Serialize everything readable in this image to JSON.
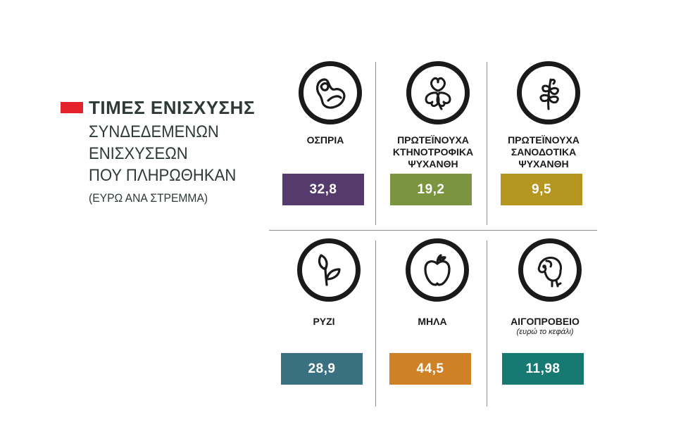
{
  "title": "ΤΙΜΕΣ ΕΝΙΣΧΥΣΗΣ",
  "subtitle_lines": [
    "ΣΥΝΔΕΔΕΜΕΝΩΝ",
    "ΕΝΙΣΧΥΣΕΩΝ",
    "ΠΟΥ ΠΛΗΡΩΘΗΚΑΝ"
  ],
  "unit": "(ΕΥΡΩ ΑΝΑ ΣΤΡΕΜΜΑ)",
  "colors": {
    "legend": "#e4222c"
  },
  "chart_data": {
    "type": "table",
    "title": "ΤΙΜΕΣ ΕΝΙΣΧΥΣΗΣ",
    "categories": [
      "ΟΣΠΡΙΑ",
      "ΠΡΩΤΕΪΝΟΥΧΑ ΚΤΗΝΟΤΡΟΦΙΚΑ ΨΥΧΑΝΘΗ",
      "ΠΡΩΤΕΪΝΟΥΧΑ ΣΑΝΟΔΟΤΙΚΑ ΨΥΧΑΝΘΗ",
      "ΡΥΖΙ",
      "ΜΗΛΑ",
      "ΑΙΓΟΠΡΟΒΕΙΟ"
    ],
    "values": [
      32.8,
      19.2,
      9.5,
      28.9,
      44.5,
      11.98
    ],
    "items": [
      {
        "label": "ΟΣΠΡΙΑ",
        "value": "32,8",
        "color": "#553a6b",
        "icon": "bean-icon"
      },
      {
        "label": "ΠΡΩΤΕΪΝΟΥΧΑ\nΚΤΗΝΟΤΡΟΦΙΚΑ\nΨΥΧΑΝΘΗ",
        "value": "19,2",
        "color": "#7a9440",
        "icon": "clover-icon"
      },
      {
        "label": "ΠΡΩΤΕΪΝΟΥΧΑ\nΣΑΝΟΔΟΤΙΚΑ\nΨΥΧΑΝΘΗ",
        "value": "9,5",
        "color": "#b59620",
        "icon": "plant-icon"
      },
      {
        "label": "ΡΥΖΙ",
        "value": "28,9",
        "color": "#3a7180",
        "icon": "sprout-icon"
      },
      {
        "label": "ΜΗΛΑ",
        "value": "44,5",
        "color": "#cf8126",
        "icon": "apple-icon"
      },
      {
        "label": "ΑΙΓΟΠΡΟΒΕΙΟ",
        "note": "(ευρώ το κεφάλι)",
        "value": "11,98",
        "color": "#177a72",
        "icon": "sheep-icon"
      }
    ]
  }
}
